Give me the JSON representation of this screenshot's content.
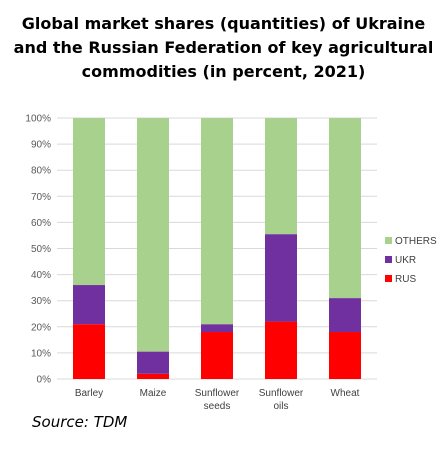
{
  "title_lines": [
    "Global market shares (quantities) of Ukraine",
    "and the Russian Federation of key agricultural",
    "commodities (in percent, 2021)"
  ],
  "source": "Source: TDM",
  "colors": {
    "RUS": "#ff0000",
    "UKR": "#7030a0",
    "OTHERS": "#a9d18e",
    "grid": "#d9d9d9"
  },
  "chart_data": {
    "type": "bar",
    "stacked": true,
    "title": "Global market shares (quantities) of Ukraine and the Russian Federation of key agricultural commodities (in percent, 2021)",
    "categories": [
      [
        "Barley"
      ],
      [
        "Maize"
      ],
      [
        "Sunflower",
        "seeds"
      ],
      [
        "Sunflower",
        "oils"
      ],
      [
        "Wheat"
      ]
    ],
    "series": [
      {
        "name": "RUS",
        "values": [
          21,
          2,
          18,
          22,
          18
        ]
      },
      {
        "name": "UKR",
        "values": [
          15,
          8.5,
          3,
          33.5,
          13
        ]
      },
      {
        "name": "OTHERS",
        "values": [
          64,
          89.5,
          79,
          44.5,
          69
        ]
      }
    ],
    "legend_order": [
      "OTHERS",
      "UKR",
      "RUS"
    ],
    "ylim": [
      0,
      100
    ],
    "yticks": [
      0,
      10,
      20,
      30,
      40,
      50,
      60,
      70,
      80,
      90,
      100
    ],
    "ytick_suffix": "%",
    "grid": true,
    "legend": "right"
  }
}
